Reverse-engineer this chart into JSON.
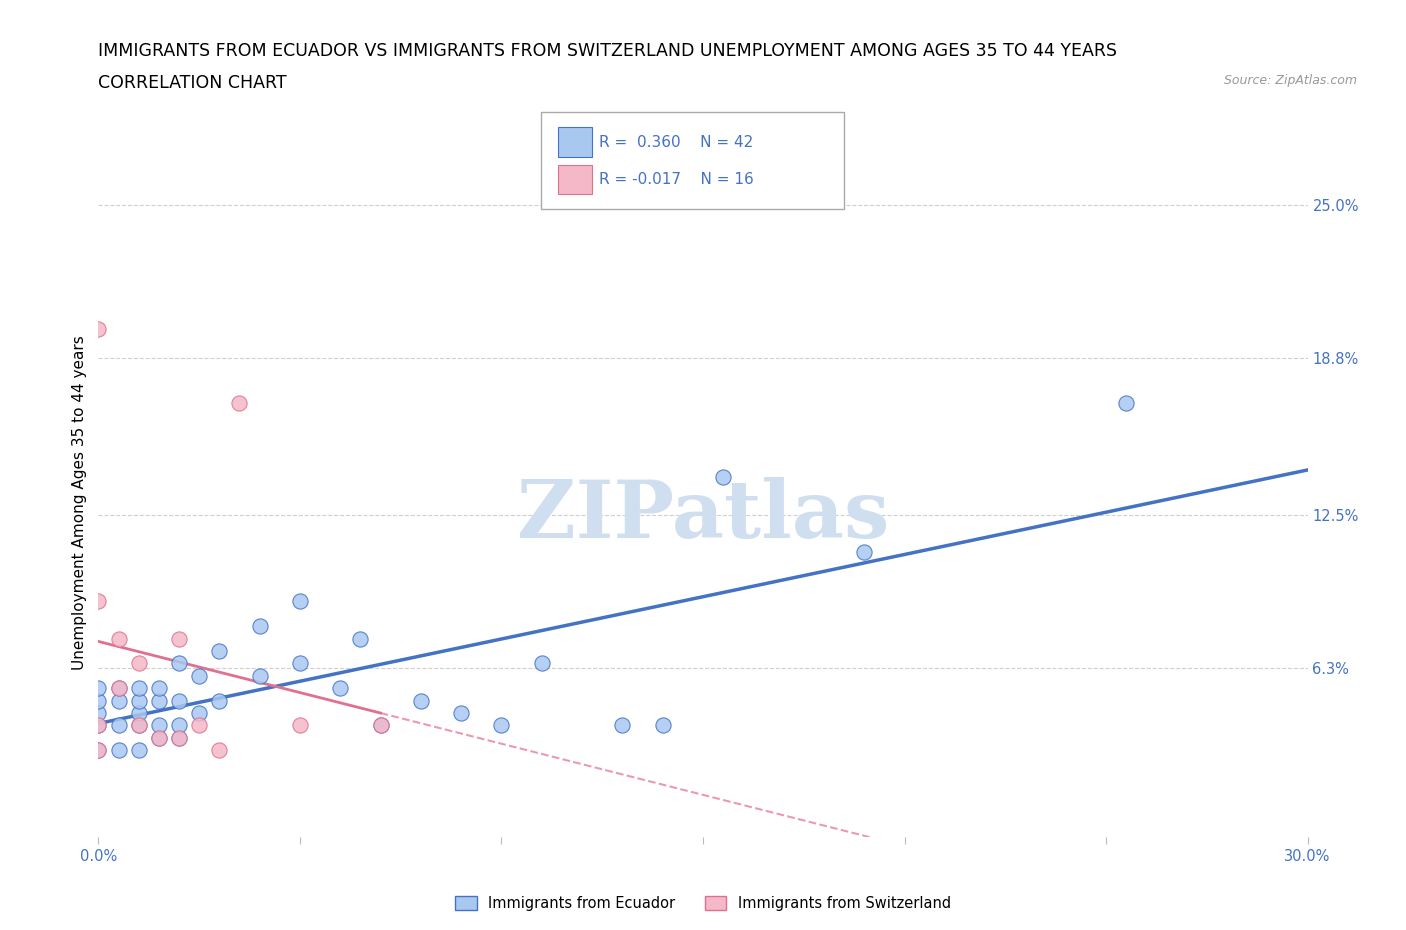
{
  "title_line1": "IMMIGRANTS FROM ECUADOR VS IMMIGRANTS FROM SWITZERLAND UNEMPLOYMENT AMONG AGES 35 TO 44 YEARS",
  "title_line2": "CORRELATION CHART",
  "source": "Source: ZipAtlas.com",
  "ylabel": "Unemployment Among Ages 35 to 44 years",
  "xlim": [
    0.0,
    0.3
  ],
  "ylim": [
    -0.005,
    0.265
  ],
  "ytick_positions": [
    0.063,
    0.125,
    0.188,
    0.25
  ],
  "ytick_labels": [
    "6.3%",
    "12.5%",
    "18.8%",
    "25.0%"
  ],
  "ecuador_color": "#a8c8f0",
  "ecuador_color_line": "#4472c4",
  "switzerland_color": "#f4b8c8",
  "switzerland_color_line": "#e07090",
  "ecuador_R": 0.36,
  "ecuador_N": 42,
  "switzerland_R": -0.017,
  "switzerland_N": 16,
  "ecuador_scatter_x": [
    0.0,
    0.0,
    0.0,
    0.0,
    0.0,
    0.005,
    0.005,
    0.005,
    0.005,
    0.01,
    0.01,
    0.01,
    0.01,
    0.01,
    0.015,
    0.015,
    0.015,
    0.015,
    0.02,
    0.02,
    0.02,
    0.02,
    0.025,
    0.025,
    0.03,
    0.03,
    0.04,
    0.04,
    0.05,
    0.05,
    0.06,
    0.065,
    0.07,
    0.08,
    0.09,
    0.1,
    0.11,
    0.13,
    0.14,
    0.155,
    0.19,
    0.255
  ],
  "ecuador_scatter_y": [
    0.03,
    0.04,
    0.045,
    0.05,
    0.055,
    0.03,
    0.04,
    0.05,
    0.055,
    0.03,
    0.04,
    0.045,
    0.05,
    0.055,
    0.035,
    0.04,
    0.05,
    0.055,
    0.035,
    0.04,
    0.05,
    0.065,
    0.045,
    0.06,
    0.05,
    0.07,
    0.06,
    0.08,
    0.065,
    0.09,
    0.055,
    0.075,
    0.04,
    0.05,
    0.045,
    0.04,
    0.065,
    0.04,
    0.04,
    0.14,
    0.11,
    0.17
  ],
  "switzerland_scatter_x": [
    0.0,
    0.0,
    0.0,
    0.0,
    0.005,
    0.005,
    0.01,
    0.01,
    0.015,
    0.02,
    0.02,
    0.025,
    0.03,
    0.035,
    0.05,
    0.07
  ],
  "switzerland_scatter_y": [
    0.03,
    0.04,
    0.09,
    0.2,
    0.055,
    0.075,
    0.04,
    0.065,
    0.035,
    0.035,
    0.075,
    0.04,
    0.03,
    0.17,
    0.04,
    0.04
  ],
  "watermark_text": "ZIPatlas",
  "watermark_color": "#d0dff0",
  "background_color": "#ffffff",
  "grid_color": "#d0d0d0",
  "tick_label_color": "#4472c4",
  "title_fontsize": 12.5,
  "axis_label_fontsize": 11,
  "tick_fontsize": 10.5
}
